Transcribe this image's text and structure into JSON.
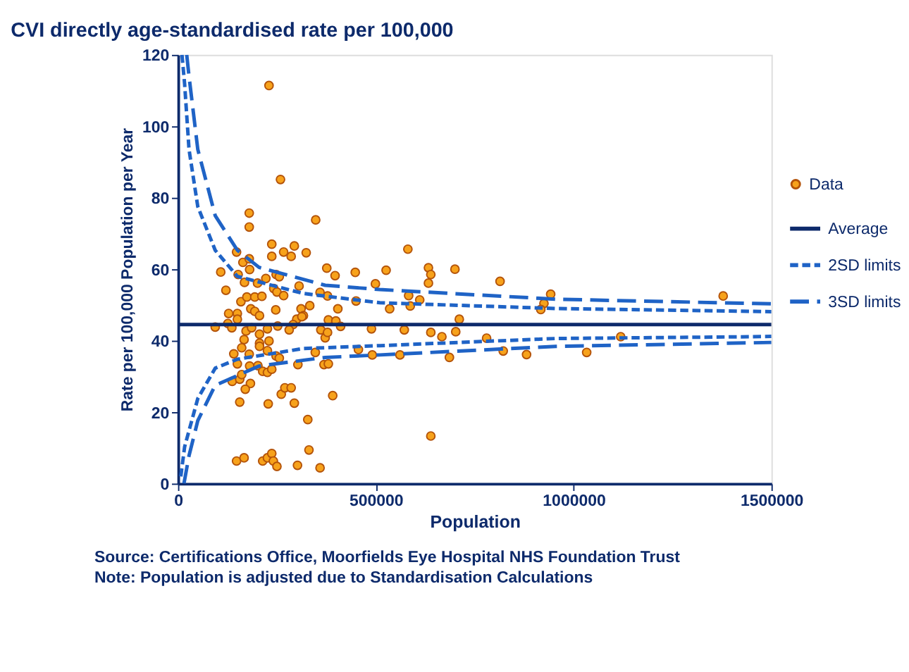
{
  "chart_data": {
    "type": "scatter",
    "title": "CVI directly age-standardised rate per 100,000",
    "xlabel": "Population",
    "ylabel": "Rate per 100,000 Population per Year",
    "xlim": [
      0,
      1500000
    ],
    "xticks": [
      0,
      500000,
      1000000,
      1500000
    ],
    "ylim": [
      0,
      120
    ],
    "yticks": [
      0,
      20,
      40,
      60,
      80,
      100,
      120
    ],
    "grid": false,
    "legend": "right",
    "series": [
      {
        "name": "Data",
        "marker": "circle",
        "color": "#f7a21b",
        "x": [
          230000,
          259000,
          180000,
          180000,
          348000,
          148000,
          237000,
          267000,
          286000,
          294000,
          324000,
          237000,
          164000,
          180000,
          181000,
          108000,
          152000,
          168000,
          201000,
          222000,
          248000,
          256000,
          121000,
          306000,
          376000,
          397000,
          448000,
          526000,
          581000,
          633000,
          639000,
          242000,
          250000,
          267000,
          159000,
          174000,
          194000,
          212000,
          184000,
          194000,
          206000,
          128000,
          150000,
          150000,
          126000,
          136000,
          94000,
          247000,
          359000,
          378000,
          311000,
          333000,
          317000,
          300000,
          291000,
          404000,
          450000,
          499000,
          535000,
          583000,
          611000,
          633000,
          380000,
          399000,
          411000,
          361000,
          372000,
          378000,
          489000,
          572000,
          639000,
          172000,
          186000,
          167000,
          206000,
          226000,
          252000,
          281000,
          313000,
          161000,
          180000,
          206000,
          230000,
          206000,
          226000,
          248000,
          256000,
          141000,
          150000,
          181000,
          202000,
          214000,
          226000,
          237000,
          303000,
          347000,
          369000,
          380000,
          456000,
          491000,
          561000,
          137000,
          156000,
          161000,
          183000,
          170000,
          156000,
          228000,
          261000,
          270000,
          286000,
          294000,
          328000,
          391000,
          639000,
          148000,
          167000,
          214000,
          226000,
          237000,
          241000,
          250000,
          302000,
          331000,
          359000,
          700000,
          814000,
          587000,
          942000,
          925000,
          917000,
          667000,
          702000,
          711000,
          780000,
          686000,
          822000,
          881000,
          1033000,
          1378000,
          1119000
        ],
        "values": [
          111.4,
          85.1,
          75.7,
          71.8,
          73.8,
          64.8,
          67,
          64.8,
          63.6,
          66.5,
          64.6,
          63.6,
          61.9,
          62.9,
          59.9,
          59.2,
          58.5,
          56.3,
          56.1,
          57.4,
          58.5,
          57.9,
          54.1,
          55.3,
          60.3,
          58.2,
          59.1,
          59.7,
          65.6,
          60.4,
          58.5,
          54.6,
          53.6,
          52.6,
          50.9,
          52.2,
          52.2,
          52.4,
          48.9,
          48.2,
          47,
          47.6,
          47.6,
          46,
          44.8,
          43.6,
          43.8,
          48.6,
          53.5,
          52.5,
          48.9,
          49.8,
          47,
          46,
          44.5,
          48.9,
          51.1,
          55.9,
          48.9,
          52.6,
          51.4,
          56.1,
          45.8,
          45.5,
          44,
          43,
          40.8,
          42.3,
          43.3,
          43,
          42.3,
          42.7,
          43.6,
          40.3,
          41.8,
          43.3,
          44.1,
          43,
          46.7,
          38,
          36.2,
          39.3,
          39.9,
          38.4,
          37.2,
          35.7,
          35.1,
          36.3,
          33.5,
          32.9,
          33,
          31.4,
          31.1,
          32,
          33.3,
          36.7,
          33.3,
          33.5,
          37.5,
          36,
          36,
          28.6,
          29.2,
          30.5,
          28,
          26.4,
          22.8,
          22.3,
          25,
          26.8,
          26.8,
          22.5,
          17.9,
          24.6,
          13.3,
          6.3,
          7.2,
          6.3,
          7.2,
          8.4,
          6.3,
          4.8,
          5.1,
          9.4,
          4.4,
          60,
          56.6,
          49.7,
          53,
          50.4,
          48.7,
          41.1,
          42.5,
          46,
          40.7,
          35.3,
          37.1,
          36.1,
          36.7,
          52.5,
          41.1
        ]
      },
      {
        "name": "Average",
        "type": "line",
        "color": "#0d2a6b",
        "line_style": "solid",
        "x": [
          0,
          1500000
        ],
        "values": [
          44.5,
          44.5
        ]
      },
      {
        "name": "2SD limits",
        "type": "line",
        "color": "#1f63c6",
        "line_style": "dashed",
        "x": [
          10000,
          16700,
          27800,
          50000,
          94000,
          150000,
          317000,
          510000,
          955000,
          1455000,
          1500000
        ],
        "values": [
          120,
          111.8,
          93.5,
          77.5,
          65.3,
          58,
          53.2,
          50.6,
          49,
          48.2,
          48.1
        ]
      },
      {
        "type": "line",
        "color": "#1f63c6",
        "line_style": "dashed",
        "x": [
          7000,
          16700,
          50000,
          94000,
          150000,
          317000,
          510000,
          955000,
          1455000,
          1500000
        ],
        "values": [
          2,
          10.3,
          23.8,
          32.3,
          34.8,
          37.8,
          38.6,
          40.6,
          41.1,
          41.2
        ]
      },
      {
        "name": "3SD limits",
        "type": "line",
        "color": "#1f63c6",
        "line_style": "longdash",
        "x": [
          22000,
          27800,
          50000,
          94000,
          150000,
          205000,
          372000,
          510000,
          955000,
          1455000,
          1500000
        ],
        "values": [
          120,
          114,
          93.5,
          75,
          65.3,
          60.5,
          55.5,
          54.3,
          51.6,
          50.4,
          50.3
        ]
      },
      {
        "type": "line",
        "color": "#1f63c6",
        "line_style": "longdash",
        "x": [
          15000,
          27800,
          50000,
          94000,
          205000,
          372000,
          510000,
          955000,
          1455000,
          1500000
        ],
        "values": [
          0,
          7.8,
          17.6,
          27.5,
          32.9,
          35.3,
          36,
          38.4,
          39.4,
          39.5
        ]
      }
    ],
    "annotations": [
      "Source: Certifications Office, Moorfields Eye Hospital NHS Foundation Trust",
      "Note: Population is adjusted due to Standardisation Calculations"
    ]
  }
}
